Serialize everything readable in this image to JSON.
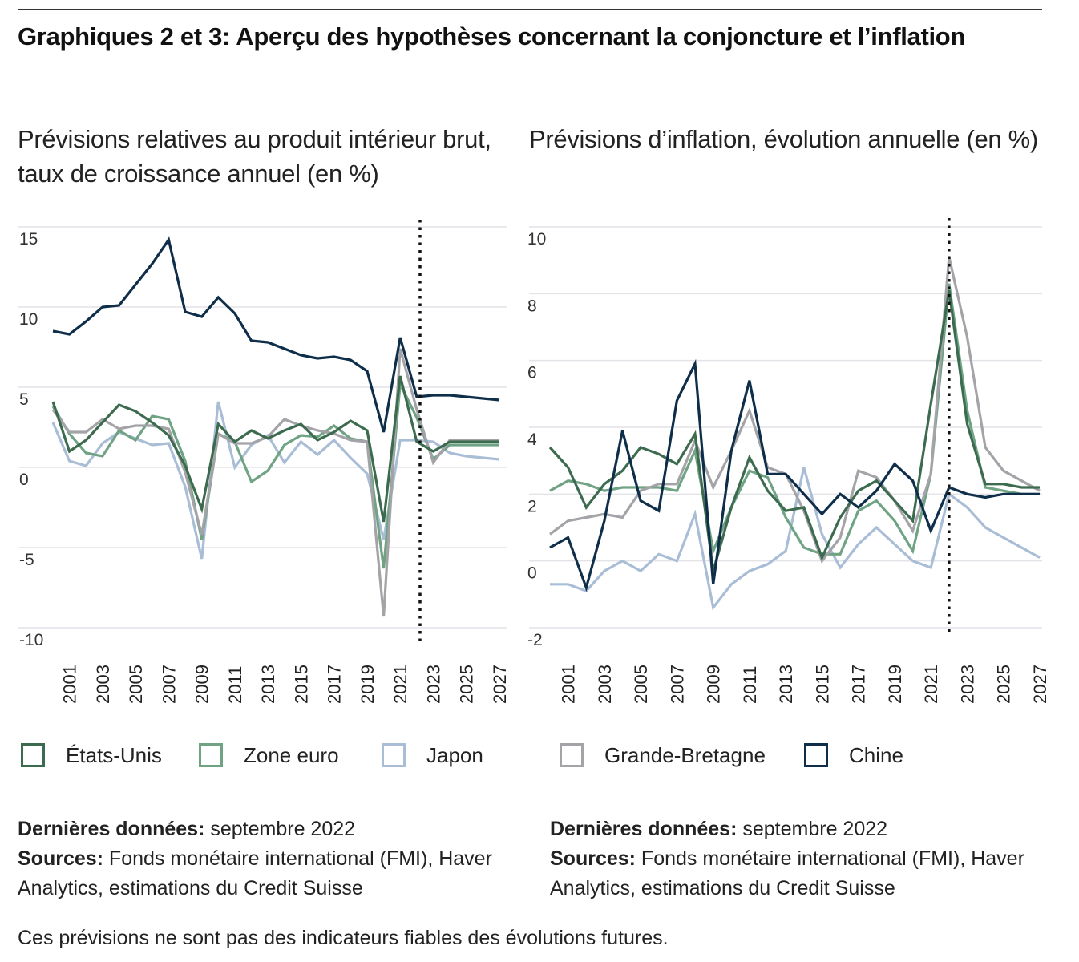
{
  "header": {
    "title": "Graphiques 2 et 3: Aperçu des hypothèses concernant la conjoncture et l’inflation"
  },
  "legend": {
    "items": [
      {
        "label": "États-Unis",
        "color": "#3d6b4f"
      },
      {
        "label": "Zone euro",
        "color": "#6fa384"
      },
      {
        "label": "Japon",
        "color": "#a9bdd6"
      },
      {
        "label": "Grande-Bretagne",
        "color": "#a3a3a8"
      },
      {
        "label": "Chine",
        "color": "#0f2e4a"
      }
    ]
  },
  "notes": {
    "left": {
      "data_label": "Dernières données:",
      "data_value": " septembre 2022",
      "sources_label": "Sources:",
      "sources_value": " Fonds monétaire international (FMI), Haver Analytics, estimations du Credit Suisse"
    },
    "right": {
      "data_label": "Dernières données:",
      "data_value": " septembre 2022",
      "sources_label": "Sources:",
      "sources_value": " Fonds monétaire international (FMI), Haver Analytics, estimations du Credit Suisse"
    }
  },
  "disclaimer": "Ces prévisions ne sont pas des indicateurs fiables des évolutions futures.",
  "chart_data": [
    {
      "type": "line",
      "title": "Prévisions relatives au produit intérieur brut, taux de croissance annuel (en %)",
      "xlabel": "",
      "ylabel": "",
      "ylim": [
        -10,
        15
      ],
      "yticks": [
        15,
        10,
        5,
        0,
        -5,
        -10
      ],
      "x": [
        2000,
        2001,
        2002,
        2003,
        2004,
        2005,
        2006,
        2007,
        2008,
        2009,
        2010,
        2011,
        2012,
        2013,
        2014,
        2015,
        2016,
        2017,
        2018,
        2019,
        2020,
        2021,
        2022,
        2023,
        2024,
        2025,
        2026,
        2027
      ],
      "xtick_labels": [
        "2001",
        "2003",
        "2005",
        "2007",
        "2009",
        "2011",
        "2013",
        "2015",
        "2017",
        "2019",
        "2021",
        "2023",
        "2025",
        "2027"
      ],
      "forecast_divider_x": 2022.2,
      "grid": true,
      "legend_position": "bottom",
      "series": [
        {
          "name": "États-Unis",
          "color": "#3d6b4f",
          "values": [
            4.1,
            1.0,
            1.7,
            2.8,
            3.9,
            3.5,
            2.8,
            2.0,
            0.1,
            -2.6,
            2.7,
            1.6,
            2.3,
            1.8,
            2.3,
            2.7,
            1.7,
            2.2,
            2.9,
            2.3,
            -3.4,
            5.7,
            1.6,
            1.0,
            1.6,
            1.6,
            1.6,
            1.6
          ]
        },
        {
          "name": "Zone euro",
          "color": "#6fa384",
          "values": [
            3.8,
            2.1,
            0.9,
            0.7,
            2.3,
            1.7,
            3.2,
            3.0,
            0.4,
            -4.5,
            2.1,
            1.6,
            -0.9,
            -0.2,
            1.4,
            2.0,
            1.9,
            2.6,
            1.8,
            1.6,
            -6.3,
            5.2,
            3.1,
            0.5,
            1.4,
            1.4,
            1.4,
            1.4
          ]
        },
        {
          "name": "Japon",
          "color": "#a9bdd6",
          "values": [
            2.8,
            0.4,
            0.1,
            1.5,
            2.2,
            1.8,
            1.4,
            1.5,
            -1.2,
            -5.7,
            4.1,
            0.0,
            1.4,
            2.0,
            0.3,
            1.6,
            0.8,
            1.7,
            0.6,
            -0.4,
            -4.5,
            1.7,
            1.7,
            1.6,
            0.9,
            0.7,
            0.6,
            0.5
          ]
        },
        {
          "name": "Grande-Bretagne",
          "color": "#a3a3a8",
          "values": [
            3.6,
            2.2,
            2.2,
            3.0,
            2.4,
            2.6,
            2.6,
            2.4,
            -0.3,
            -4.2,
            2.1,
            1.5,
            1.5,
            1.9,
            3.0,
            2.6,
            2.3,
            2.1,
            1.7,
            1.6,
            -9.3,
            7.4,
            3.6,
            0.3,
            1.7,
            1.7,
            1.7,
            1.7
          ]
        },
        {
          "name": "Chine",
          "color": "#0f2e4a",
          "values": [
            8.5,
            8.3,
            9.1,
            10.0,
            10.1,
            11.4,
            12.7,
            14.2,
            9.7,
            9.4,
            10.6,
            9.6,
            7.9,
            7.8,
            7.4,
            7.0,
            6.8,
            6.9,
            6.7,
            6.0,
            2.2,
            8.1,
            4.4,
            4.5,
            4.5,
            4.4,
            4.3,
            4.2
          ]
        }
      ]
    },
    {
      "type": "line",
      "title": "Prévisions d’inflation, évolution annuelle (en %)",
      "xlabel": "",
      "ylabel": "",
      "ylim": [
        -2,
        10
      ],
      "yticks": [
        10,
        8,
        6,
        4,
        2,
        0,
        -2
      ],
      "x": [
        2000,
        2001,
        2002,
        2003,
        2004,
        2005,
        2006,
        2007,
        2008,
        2009,
        2010,
        2011,
        2012,
        2013,
        2014,
        2015,
        2016,
        2017,
        2018,
        2019,
        2020,
        2021,
        2022,
        2023,
        2024,
        2025,
        2026,
        2027
      ],
      "xtick_labels": [
        "2001",
        "2003",
        "2005",
        "2007",
        "2009",
        "2011",
        "2013",
        "2015",
        "2017",
        "2019",
        "2021",
        "2023",
        "2025",
        "2027"
      ],
      "forecast_divider_x": 2022.0,
      "grid": true,
      "legend_position": "bottom",
      "series": [
        {
          "name": "États-Unis",
          "color": "#3d6b4f",
          "values": [
            3.4,
            2.8,
            1.6,
            2.3,
            2.7,
            3.4,
            3.2,
            2.9,
            3.8,
            -0.3,
            1.6,
            3.1,
            2.1,
            1.5,
            1.6,
            0.1,
            1.3,
            2.1,
            2.4,
            1.8,
            1.2,
            4.7,
            8.1,
            4.1,
            2.3,
            2.3,
            2.2,
            2.2
          ]
        },
        {
          "name": "Zone euro",
          "color": "#6fa384",
          "values": [
            2.1,
            2.4,
            2.3,
            2.1,
            2.2,
            2.2,
            2.2,
            2.1,
            3.3,
            0.3,
            1.6,
            2.7,
            2.5,
            1.3,
            0.4,
            0.2,
            0.2,
            1.5,
            1.8,
            1.2,
            0.3,
            2.6,
            8.3,
            4.5,
            2.2,
            2.1,
            2.0,
            2.0
          ]
        },
        {
          "name": "Japon",
          "color": "#a9bdd6",
          "values": [
            -0.7,
            -0.7,
            -0.9,
            -0.3,
            0.0,
            -0.3,
            0.2,
            0.0,
            1.4,
            -1.4,
            -0.7,
            -0.3,
            -0.1,
            0.3,
            2.8,
            0.8,
            -0.2,
            0.5,
            1.0,
            0.5,
            0.0,
            -0.2,
            2.0,
            1.6,
            1.0,
            0.7,
            0.4,
            0.1
          ]
        },
        {
          "name": "Grande-Bretagne",
          "color": "#a3a3a8",
          "values": [
            0.8,
            1.2,
            1.3,
            1.4,
            1.3,
            2.1,
            2.3,
            2.3,
            3.6,
            2.2,
            3.3,
            4.5,
            2.8,
            2.6,
            1.5,
            0.0,
            0.7,
            2.7,
            2.5,
            1.8,
            0.9,
            2.6,
            9.1,
            6.7,
            3.4,
            2.7,
            2.4,
            2.1
          ]
        },
        {
          "name": "Chine",
          "color": "#0f2e4a",
          "values": [
            0.4,
            0.7,
            -0.8,
            1.2,
            3.9,
            1.8,
            1.5,
            4.8,
            5.9,
            -0.7,
            3.3,
            5.4,
            2.6,
            2.6,
            2.0,
            1.4,
            2.0,
            1.6,
            2.1,
            2.9,
            2.4,
            0.9,
            2.2,
            2.0,
            1.9,
            2.0,
            2.0,
            2.0
          ]
        }
      ]
    }
  ]
}
